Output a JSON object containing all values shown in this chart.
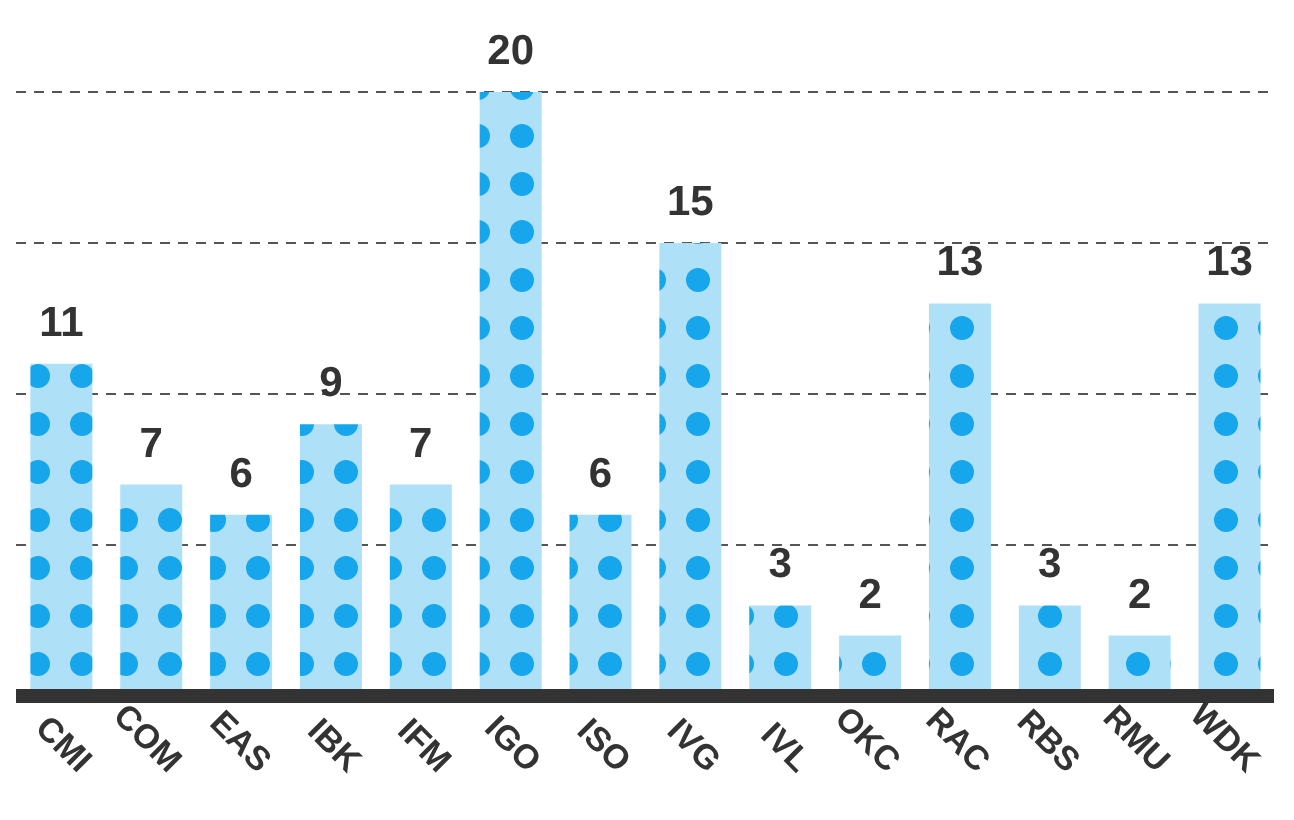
{
  "chart_data": {
    "type": "bar",
    "categories": [
      "CMI",
      "COM",
      "EAS",
      "IBK",
      "IFM",
      "IGO",
      "ISO",
      "IVG",
      "IVL",
      "OKC",
      "RAC",
      "RBS",
      "RMU",
      "WDK"
    ],
    "values": [
      11,
      7,
      6,
      9,
      7,
      20,
      6,
      15,
      3,
      2,
      13,
      3,
      2,
      13
    ],
    "color": "#aee0f8",
    "ylim": [
      0,
      20
    ],
    "yticks": [
      {
        "value": 5,
        "label": null
      },
      {
        "value": 10,
        "label": null
      },
      {
        "value": 15,
        "label": null
      },
      {
        "value": 20,
        "label": null
      }
    ],
    "tick_labels": "x",
    "grid": "y",
    "data_labels": true
  }
}
